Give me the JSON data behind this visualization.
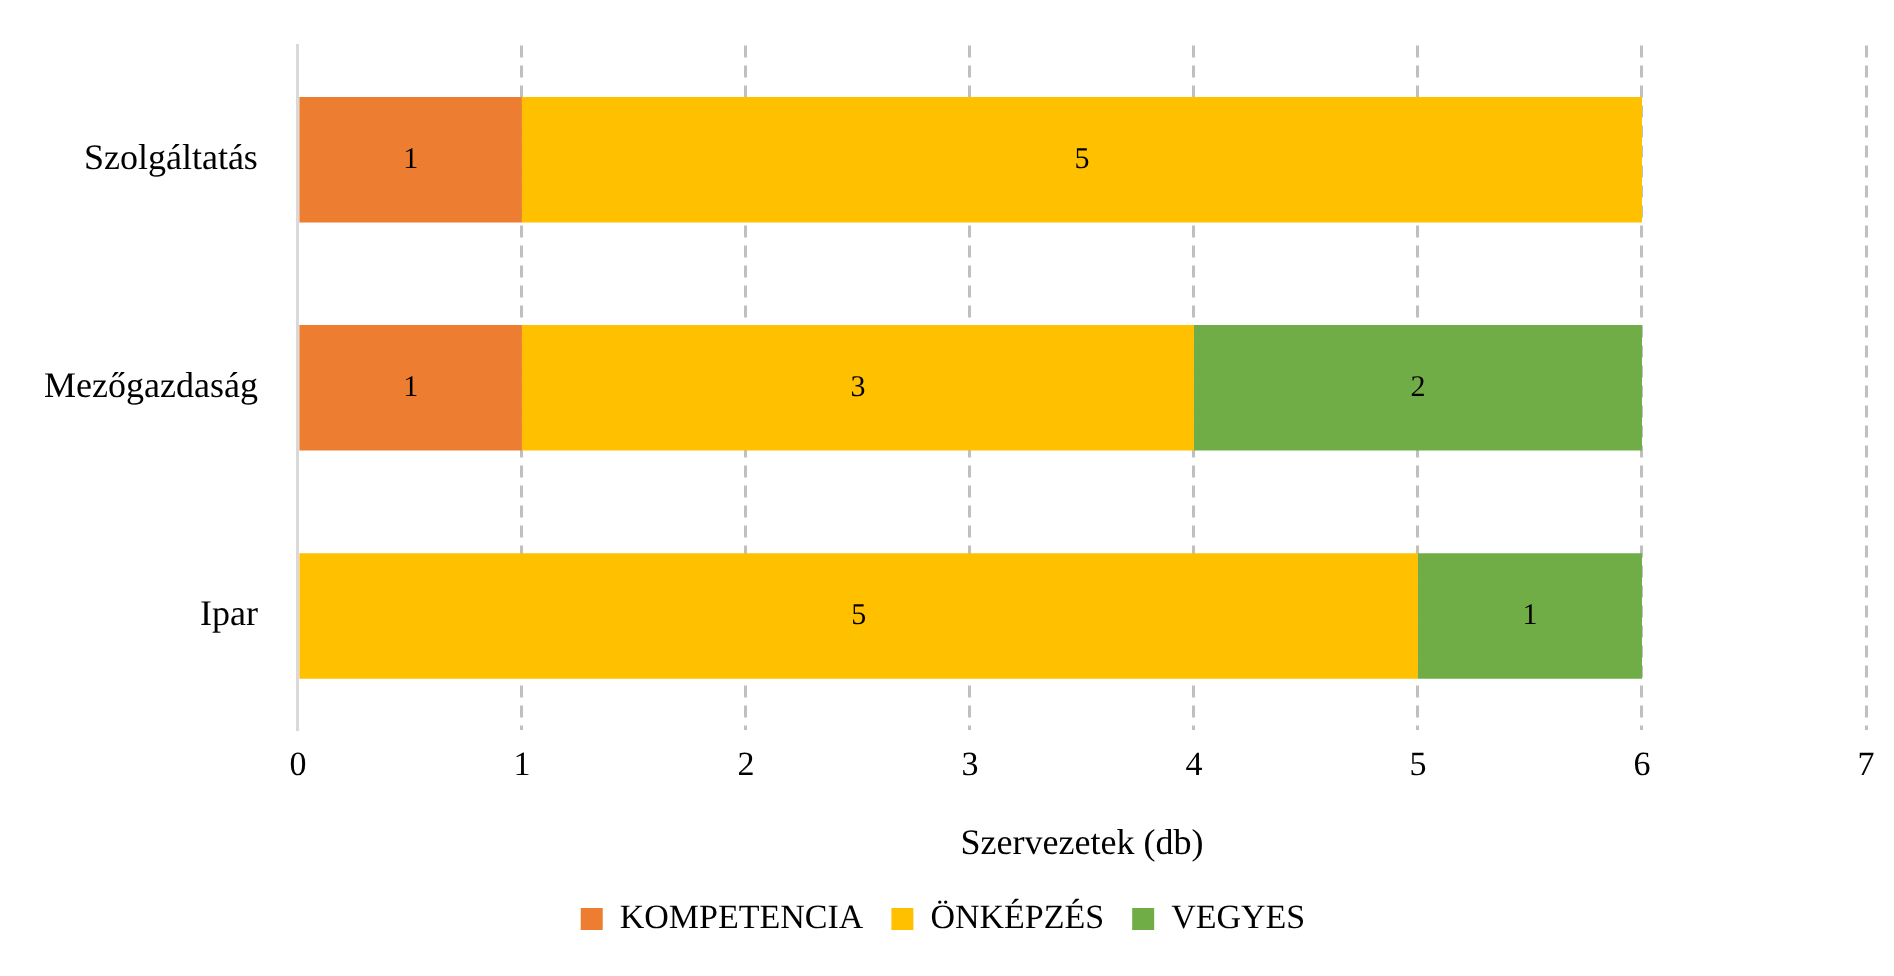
{
  "chart_data": {
    "type": "bar",
    "orientation": "horizontal",
    "stacked": true,
    "xlabel": "Szervezetek (db)",
    "categories": [
      "Szolgáltatás",
      "Mezőgazdaság",
      "Ipar"
    ],
    "series": [
      {
        "name": "KOMPETENCIA",
        "color": "#ed7d31",
        "values": [
          1,
          1,
          null
        ]
      },
      {
        "name": "ÖNKÉPZÉS",
        "color": "#ffc000",
        "values": [
          5,
          3,
          5
        ]
      },
      {
        "name": "VEGYES",
        "color": "#70ad47",
        "values": [
          null,
          2,
          1
        ]
      }
    ],
    "xlim": [
      0,
      7
    ],
    "xticks": [
      0,
      1,
      2,
      3,
      4,
      5,
      6,
      7
    ],
    "grid": "x",
    "legend": "bottom",
    "data_labels": true
  }
}
